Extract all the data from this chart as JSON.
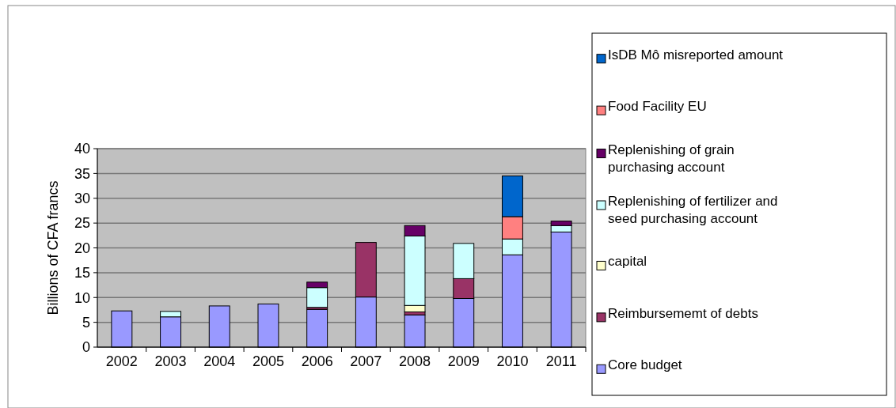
{
  "chart_data": {
    "type": "bar",
    "stacked": true,
    "ylabel": "Billions of CFA francs",
    "categories": [
      "2002",
      "2003",
      "2004",
      "2005",
      "2006",
      "2007",
      "2008",
      "2009",
      "2010",
      "2011"
    ],
    "series": [
      {
        "name": "Core budget",
        "color": "#9999ff",
        "values": [
          7.3,
          6.1,
          8.3,
          8.7,
          7.6,
          10.1,
          6.5,
          9.8,
          18.6,
          23.2
        ]
      },
      {
        "name": "Reimbursememt of debts",
        "color": "#993366",
        "values": [
          null,
          null,
          null,
          null,
          0.4,
          11.0,
          0.6,
          4.0,
          null,
          null
        ]
      },
      {
        "name": "capital",
        "color": "#ffffcc",
        "values": [
          null,
          null,
          null,
          null,
          null,
          null,
          1.3,
          null,
          null,
          null
        ]
      },
      {
        "name": "Replenishing of fertilizer and seed purchasing account",
        "color": "#ccffff",
        "values": [
          null,
          1.1,
          null,
          null,
          4.0,
          null,
          14.0,
          7.1,
          3.2,
          1.3
        ]
      },
      {
        "name": "Replenishing of grain purchasing account",
        "color": "#660066",
        "values": [
          null,
          null,
          null,
          null,
          1.1,
          null,
          2.1,
          null,
          null,
          0.9
        ]
      },
      {
        "name": "Food Facility EU",
        "color": "#ff8080",
        "values": [
          null,
          null,
          null,
          null,
          null,
          null,
          null,
          null,
          4.5,
          null
        ]
      },
      {
        "name": "IsDB Mô misreported amount",
        "color": "#0066cc",
        "values": [
          null,
          null,
          null,
          null,
          null,
          null,
          null,
          null,
          8.2,
          null
        ]
      }
    ],
    "ylim": [
      0,
      40
    ],
    "yticks": [
      0,
      5,
      10,
      15,
      20,
      25,
      30,
      35,
      40
    ],
    "grid": "y",
    "legend": "right"
  }
}
